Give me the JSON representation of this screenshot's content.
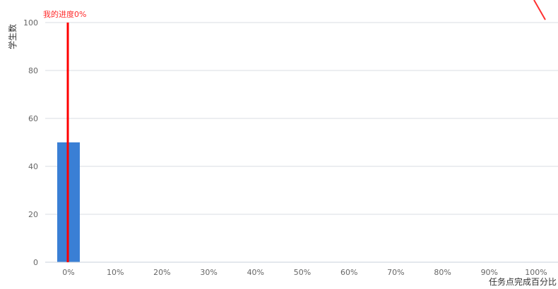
{
  "chart_data": {
    "type": "bar",
    "categories": [
      "0%",
      "10%",
      "20%",
      "30%",
      "40%",
      "50%",
      "60%",
      "70%",
      "80%",
      "90%",
      "100%"
    ],
    "values": [
      50,
      0,
      0,
      0,
      0,
      0,
      0,
      0,
      0,
      0,
      0
    ],
    "xlabel": "任务点完成百分比",
    "ylabel": "学生数",
    "ylim": [
      0,
      100
    ],
    "yticks": [
      0,
      20,
      40,
      60,
      80,
      100
    ],
    "grid": true,
    "bar_color": "#3a7fd5",
    "marker": {
      "label": "我的进度0%",
      "value": "0%",
      "color": "#ff0000"
    }
  }
}
